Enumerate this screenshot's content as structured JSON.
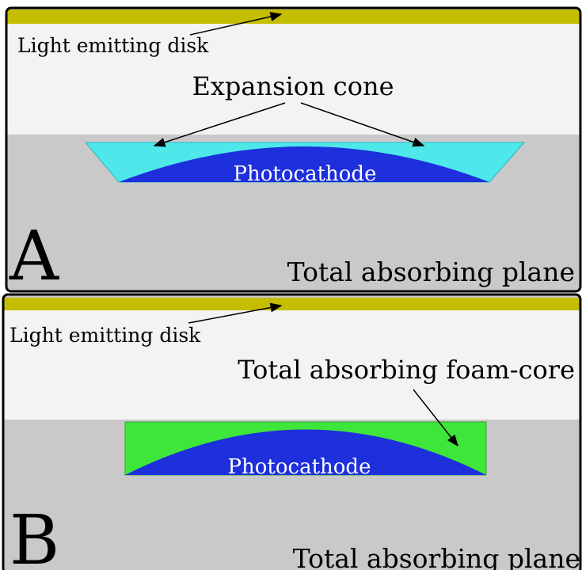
{
  "panels": [
    {
      "label": "A",
      "emitter": "Light emitting disk",
      "annotation": "Expansion cone",
      "cathode": "Photocathode",
      "plane": "Total absorbing plane"
    },
    {
      "label": "B",
      "emitter": "Light emitting disk",
      "annotation": "Total absorbing foam-core",
      "cathode": "Photocathode",
      "plane": "Total absorbing plane"
    }
  ]
}
